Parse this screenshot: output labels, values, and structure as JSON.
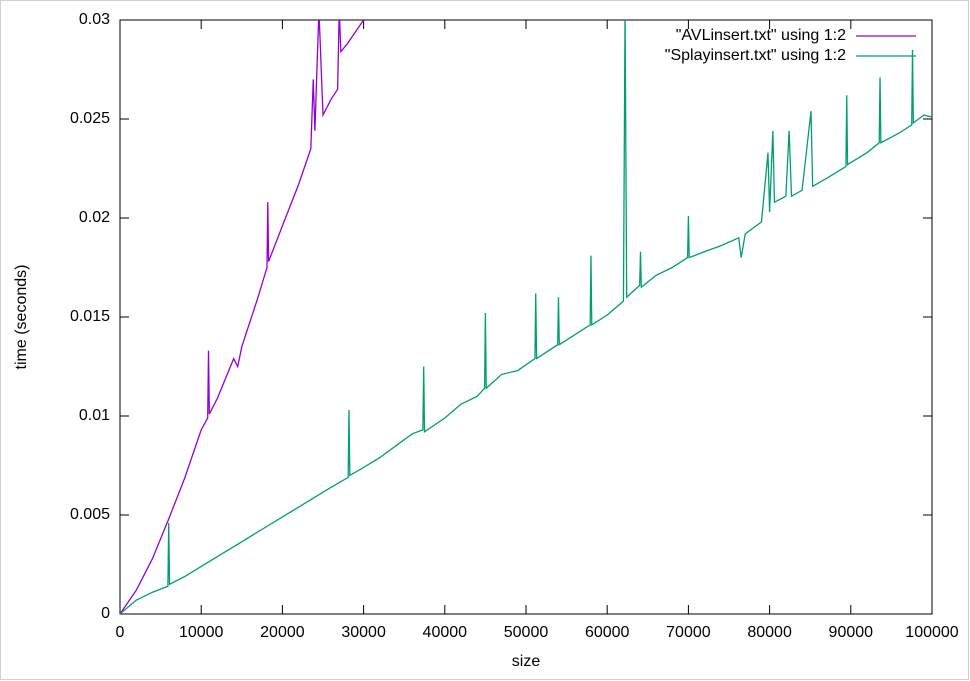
{
  "chart_data": {
    "type": "line",
    "xlabel": "size",
    "ylabel": "time (seconds)",
    "xlim": [
      0,
      100000
    ],
    "ylim": [
      0,
      0.03
    ],
    "xticks": [
      0,
      10000,
      20000,
      30000,
      40000,
      50000,
      60000,
      70000,
      80000,
      90000,
      100000
    ],
    "yticks": [
      0,
      0.005,
      0.01,
      0.015,
      0.02,
      0.025,
      0.03
    ],
    "legend": "top-right",
    "series": [
      {
        "name": "\"AVLinsert.txt\" using 1:2",
        "color": "#9400d3",
        "x": [
          0,
          2000,
          4000,
          6000,
          8000,
          10000,
          10800,
          10900,
          11000,
          12000,
          13000,
          14000,
          14500,
          15000,
          17000,
          18100,
          18200,
          18300,
          20000,
          22000,
          23500,
          23800,
          24000,
          24500,
          25000,
          26000,
          26800,
          27000,
          27200,
          28000,
          30000
        ],
        "values": [
          0,
          0.0012,
          0.0028,
          0.0048,
          0.0069,
          0.0093,
          0.0099,
          0.0133,
          0.0101,
          0.0109,
          0.0119,
          0.0129,
          0.0125,
          0.0135,
          0.016,
          0.0175,
          0.0208,
          0.0178,
          0.0196,
          0.0217,
          0.0235,
          0.027,
          0.0244,
          0.0305,
          0.0252,
          0.026,
          0.0265,
          0.0305,
          0.0284,
          0.0288,
          0.03
        ]
      },
      {
        "name": "\"Splayinsert.txt\" using 1:2",
        "color": "#009e73",
        "x": [
          0,
          2000,
          4000,
          5900,
          6000,
          6100,
          8000,
          10000,
          12000,
          14000,
          16000,
          18000,
          20000,
          22000,
          24000,
          26000,
          28100,
          28200,
          28300,
          30000,
          32000,
          34000,
          36000,
          37300,
          37400,
          37500,
          40000,
          42000,
          44000,
          44900,
          45000,
          45100,
          47000,
          49000,
          51100,
          51200,
          51300,
          53900,
          54000,
          54100,
          56000,
          57900,
          58000,
          58100,
          60000,
          62000,
          62200,
          62400,
          64000,
          64100,
          64200,
          66000,
          68000,
          69900,
          70000,
          70100,
          72000,
          74000,
          76200,
          76500,
          77000,
          79000,
          79800,
          80000,
          80400,
          80600,
          82000,
          82400,
          82700,
          84000,
          85100,
          85300,
          87000,
          89400,
          89500,
          89600,
          92000,
          93500,
          93600,
          93700,
          96000,
          97500,
          97600,
          97700,
          99000,
          100000
        ],
        "values": [
          0,
          0.0007,
          0.0011,
          0.0014,
          0.0046,
          0.0015,
          0.0019,
          0.0024,
          0.0029,
          0.0034,
          0.0039,
          0.0044,
          0.0049,
          0.0054,
          0.0059,
          0.0064,
          0.0069,
          0.0103,
          0.007,
          0.0074,
          0.0079,
          0.0085,
          0.0091,
          0.0093,
          0.0125,
          0.0092,
          0.0099,
          0.0106,
          0.011,
          0.0114,
          0.0152,
          0.0114,
          0.0121,
          0.0123,
          0.0129,
          0.0162,
          0.0129,
          0.0136,
          0.016,
          0.0136,
          0.0141,
          0.0146,
          0.0181,
          0.0146,
          0.0151,
          0.0158,
          0.0305,
          0.016,
          0.0166,
          0.0183,
          0.0165,
          0.0171,
          0.0175,
          0.018,
          0.0201,
          0.018,
          0.0183,
          0.0186,
          0.019,
          0.018,
          0.0192,
          0.0198,
          0.0233,
          0.0203,
          0.0244,
          0.0208,
          0.0211,
          0.0244,
          0.0211,
          0.0214,
          0.0254,
          0.0216,
          0.022,
          0.0226,
          0.0262,
          0.0227,
          0.0233,
          0.0238,
          0.0271,
          0.0238,
          0.0243,
          0.0247,
          0.0285,
          0.0248,
          0.0252,
          0.0251
        ]
      }
    ]
  }
}
